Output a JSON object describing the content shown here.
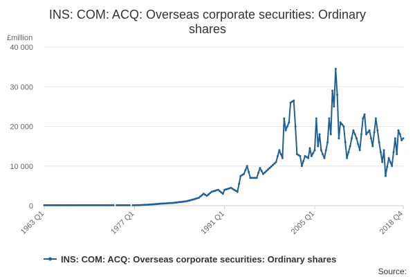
{
  "chart_data": {
    "type": "line",
    "title_lines": [
      "INS: COM: ACQ: Overseas corporate securities: Ordinary",
      "shares"
    ],
    "unit_label": "£million",
    "y_ticks": [
      0,
      10000,
      20000,
      30000,
      40000
    ],
    "y_tick_labels": [
      "0",
      "10 000",
      "20 000",
      "30 000",
      "40 000"
    ],
    "ylim": [
      0,
      40000
    ],
    "x_range": [
      1963.0,
      2018.75
    ],
    "x_ticks": [
      1963.0,
      1977.0,
      1991.0,
      2005.0,
      2018.75
    ],
    "x_tick_labels": [
      "1963 Q1",
      "1977 Q1",
      "1991 Q1",
      "2005 Q1",
      "2018 Q4"
    ],
    "grid": true,
    "legend_position": "bottom",
    "source_label": "Source:",
    "series": [
      {
        "name": "INS: COM: ACQ: Overseas corporate securities: Ordinary shares",
        "color": "#206095",
        "segments": [
          {
            "x_start": 1963.0,
            "x_end": 1973.75,
            "step": 0.25,
            "values": [
              100
            ]
          },
          {
            "x_start": 1974.25,
            "x_end": 1976.25,
            "step": 0.25,
            "values": [
              100
            ]
          },
          {
            "x_start": 1976.75,
            "x_end": 2018.75,
            "step": 0.25,
            "anchors": [
              [
                1976.75,
                100
              ],
              [
                1978.0,
                150
              ],
              [
                1979.0,
                250
              ],
              [
                1980.0,
                350
              ],
              [
                1981.0,
                500
              ],
              [
                1982.0,
                600
              ],
              [
                1983.0,
                700
              ],
              [
                1984.0,
                900
              ],
              [
                1985.0,
                1100
              ],
              [
                1986.0,
                1500
              ],
              [
                1987.0,
                2000
              ],
              [
                1987.75,
                3000
              ],
              [
                1988.25,
                2500
              ],
              [
                1989.0,
                3500
              ],
              [
                1990.0,
                4000
              ],
              [
                1990.75,
                3000
              ],
              [
                1991.0,
                4000
              ],
              [
                1992.0,
                4500
              ],
              [
                1993.0,
                3500
              ],
              [
                1993.5,
                7500
              ],
              [
                1994.0,
                8000
              ],
              [
                1994.5,
                10000
              ],
              [
                1995.0,
                7000
              ],
              [
                1996.0,
                7000
              ],
              [
                1996.5,
                9500
              ],
              [
                1997.0,
                8000
              ],
              [
                1998.0,
                9500
              ],
              [
                1999.0,
                11000
              ],
              [
                1999.5,
                14000
              ],
              [
                2000.0,
                12000
              ],
              [
                2000.25,
                22000
              ],
              [
                2000.5,
                19000
              ],
              [
                2001.0,
                21000
              ],
              [
                2001.25,
                26000
              ],
              [
                2001.75,
                26500
              ],
              [
                2002.0,
                20000
              ],
              [
                2002.25,
                13000
              ],
              [
                2002.75,
                12500
              ],
              [
                2003.0,
                10000
              ],
              [
                2003.5,
                12500
              ],
              [
                2004.0,
                12000
              ],
              [
                2004.25,
                14500
              ],
              [
                2004.5,
                12500
              ],
              [
                2005.0,
                14000
              ],
              [
                2005.25,
                22000
              ],
              [
                2005.5,
                15000
              ],
              [
                2005.75,
                18000
              ],
              [
                2006.0,
                14000
              ],
              [
                2006.5,
                12000
              ],
              [
                2007.0,
                16000
              ],
              [
                2007.25,
                22000
              ],
              [
                2007.5,
                18000
              ],
              [
                2007.75,
                29000
              ],
              [
                2008.0,
                25000
              ],
              [
                2008.25,
                34500
              ],
              [
                2008.5,
                28000
              ],
              [
                2008.75,
                17000
              ],
              [
                2009.0,
                21000
              ],
              [
                2009.5,
                20000
              ],
              [
                2010.0,
                12000
              ],
              [
                2010.5,
                15000
              ],
              [
                2011.0,
                19000
              ],
              [
                2011.5,
                17000
              ],
              [
                2012.0,
                14000
              ],
              [
                2012.5,
                22000
              ],
              [
                2012.75,
                23000
              ],
              [
                2013.0,
                18000
              ],
              [
                2013.5,
                19000
              ],
              [
                2014.0,
                15000
              ],
              [
                2014.5,
                22000
              ],
              [
                2015.0,
                16000
              ],
              [
                2015.5,
                11000
              ],
              [
                2015.75,
                14000
              ],
              [
                2016.0,
                7500
              ],
              [
                2016.5,
                12000
              ],
              [
                2017.0,
                10000
              ],
              [
                2017.5,
                17000
              ],
              [
                2017.75,
                13000
              ],
              [
                2018.0,
                19000
              ],
              [
                2018.25,
                18000
              ],
              [
                2018.5,
                16500
              ],
              [
                2018.75,
                17000
              ]
            ]
          }
        ]
      }
    ]
  }
}
